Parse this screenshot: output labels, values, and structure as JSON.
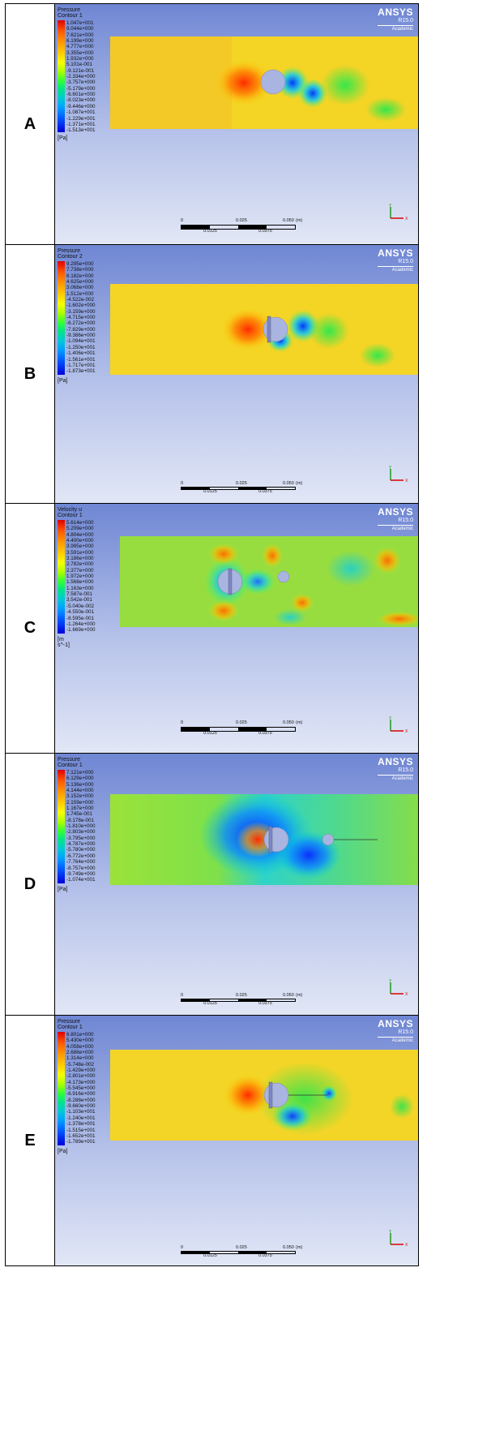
{
  "panels": [
    {
      "label": "A",
      "brand": {
        "name": "ANSYS",
        "release": "R15.0",
        "edition": "Academic"
      },
      "title_line1": "Pressure",
      "title_line2": "Contour 1",
      "unit": "[Pa]",
      "legend": [
        "1.047e+001",
        "9.044e+000",
        "7.621e+000",
        "6.199e+000",
        "4.777e+000",
        "3.355e+000",
        "1.932e+000",
        "5.101e-001",
        "-9.121e-001",
        "-2.334e+000",
        "-3.757e+000",
        "-5.179e+000",
        "-6.601e+000",
        "-8.023e+000",
        "-9.446e+000",
        "-1.087e+001",
        "-1.229e+001",
        "-1.371e+001",
        "-1.513e+001"
      ],
      "scale": {
        "top": [
          "0",
          "0.025",
          "0.050",
          "(m)"
        ],
        "bottom": [
          "0.0125",
          "0.0375"
        ]
      }
    },
    {
      "label": "B",
      "brand": {
        "name": "ANSYS",
        "release": "R15.0",
        "edition": "Academic"
      },
      "title_line1": "Pressure",
      "title_line2": "Contour 2",
      "unit": "[Pa]",
      "legend": [
        "9.295e+000",
        "7.738e+000",
        "6.182e+000",
        "4.625e+000",
        "3.068e+000",
        "1.512e+000",
        "-4.522e-002",
        "-1.602e+000",
        "-3.159e+000",
        "-4.715e+000",
        "-6.272e+000",
        "-7.829e+000",
        "-9.386e+000",
        "-1.094e+001",
        "-1.250e+001",
        "-1.406e+001",
        "-1.561e+001",
        "-1.717e+001",
        "-1.873e+001"
      ],
      "scale": {
        "top": [
          "0",
          "0.025",
          "0.050",
          "(m)"
        ],
        "bottom": [
          "0.0125",
          "0.0375"
        ]
      }
    },
    {
      "label": "C",
      "brand": {
        "name": "ANSYS",
        "release": "R15.0",
        "edition": "Academic"
      },
      "title_line1": "Velocity u",
      "title_line2": "Contour 1",
      "unit": "[m s^-1]",
      "legend": [
        "5.614e+000",
        "5.209e+000",
        "4.804e+000",
        "4.400e+000",
        "3.995e+000",
        "3.591e+000",
        "3.186e+000",
        "2.782e+000",
        "2.377e+000",
        "1.972e+000",
        "1.568e+000",
        "1.163e+000",
        "7.587e-001",
        "3.542e-001",
        "-5.040e-002",
        "-4.550e-001",
        "-8.595e-001",
        "-1.264e+000",
        "-1.669e+000"
      ],
      "scale": {
        "top": [
          "0",
          "0.025",
          "0.050",
          "(m)"
        ],
        "bottom": [
          "0.0125",
          "0.0375"
        ]
      }
    },
    {
      "label": "D",
      "brand": {
        "name": "ANSYS",
        "release": "R15.0",
        "edition": "Academic"
      },
      "title_line1": "Pressure",
      "title_line2": "Contour 1",
      "unit": "[Pa]",
      "legend": [
        "7.121e+000",
        "6.129e+000",
        "5.136e+000",
        "4.144e+000",
        "3.152e+000",
        "2.159e+000",
        "1.167e+000",
        "1.745e-001",
        "-8.178e-001",
        "-1.810e+000",
        "-2.803e+000",
        "-3.795e+000",
        "-4.787e+000",
        "-5.780e+000",
        "-6.772e+000",
        "-7.764e+000",
        "-8.757e+000",
        "-9.749e+000",
        "-1.074e+001"
      ],
      "scale": {
        "top": [
          "0",
          "0.025",
          "0.050",
          "(m)"
        ],
        "bottom": [
          "0.0125",
          "0.0375"
        ]
      }
    },
    {
      "label": "E",
      "brand": {
        "name": "ANSYS",
        "release": "R15.0",
        "edition": "Academic"
      },
      "title_line1": "Pressure",
      "title_line2": "Contour 1",
      "unit": "[Pa]",
      "legend": [
        "6.801e+000",
        "5.430e+000",
        "4.058e+000",
        "2.686e+000",
        "1.314e+000",
        "-5.748e-002",
        "-1.429e+000",
        "-2.801e+000",
        "-4.173e+000",
        "-5.545e+000",
        "-6.916e+000",
        "-8.288e+000",
        "-9.660e+000",
        "-1.103e+001",
        "-1.240e+001",
        "-1.378e+001",
        "-1.515e+001",
        "-1.652e+001",
        "-1.789e+001"
      ],
      "scale": {
        "top": [
          "0",
          "0.025",
          "0.050",
          "(m)"
        ],
        "bottom": [
          "0.0125",
          "0.0375"
        ]
      }
    }
  ],
  "axes_labels": {
    "y": "Y",
    "x": "X"
  }
}
